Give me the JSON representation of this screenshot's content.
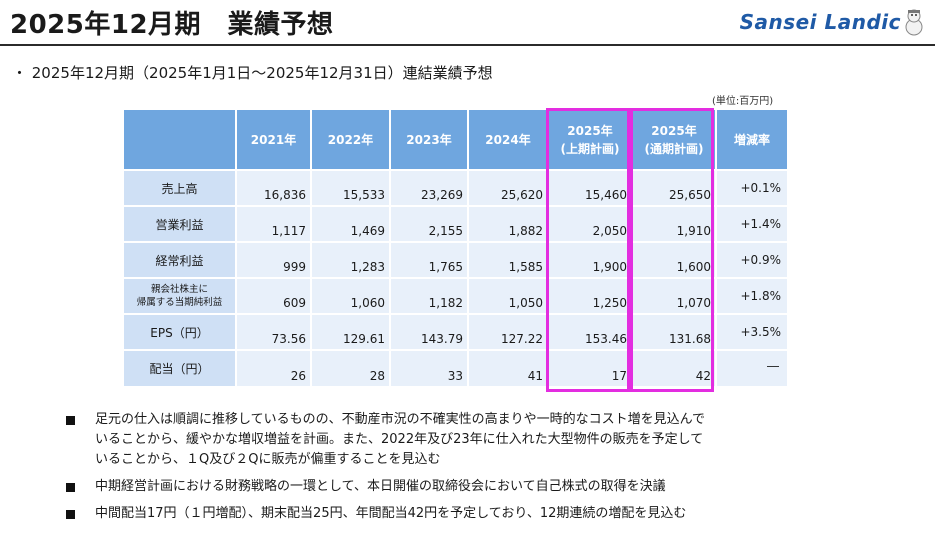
{
  "header": {
    "title": "2025年12月期　業績予想",
    "logo_text": "Sansei Landic"
  },
  "subtitle": "・ 2025年12月期（2025年1月1日～2025年12月31日）連結業績予想",
  "unit_note": "(単位:百万円)",
  "table": {
    "columns": [
      "2021年",
      "2022年",
      "2023年",
      "2024年",
      "2025年\n(上期計画)",
      "2025年\n(通期計画)",
      "増減率"
    ],
    "rows": [
      {
        "label": "売上高",
        "values": [
          "16,836",
          "15,533",
          "23,269",
          "25,620",
          "15,460",
          "25,650"
        ],
        "change": "+0.1%"
      },
      {
        "label": "営業利益",
        "values": [
          "1,117",
          "1,469",
          "2,155",
          "1,882",
          "2,050",
          "1,910"
        ],
        "change": "+1.4%"
      },
      {
        "label": "経常利益",
        "values": [
          "999",
          "1,283",
          "1,765",
          "1,585",
          "1,900",
          "1,600"
        ],
        "change": "+0.9%"
      },
      {
        "label": "親会社株主に\n帰属する当期純利益",
        "values": [
          "609",
          "1,060",
          "1,182",
          "1,050",
          "1,250",
          "1,070"
        ],
        "change": "+1.8%"
      },
      {
        "label": "EPS（円）",
        "values": [
          "73.56",
          "129.61",
          "143.79",
          "127.22",
          "153.46",
          "131.68"
        ],
        "change": "+3.5%"
      },
      {
        "label": "配当（円）",
        "values": [
          "26",
          "28",
          "33",
          "41",
          "17",
          "42"
        ],
        "change": "―"
      }
    ]
  },
  "highlight_color": "#e32de0",
  "bullets": [
    "足元の仕入は順調に推移しているものの、不動産市況の不確実性の高まりや一時的なコスト増を見込んで\nいることから、緩やかな増収増益を計画。また、2022年及び23年に仕入れた大型物件の販売を予定して\nいることから、１Q及び２Qに販売が偏重することを見込む",
    "中期経営計画における財務戦略の一環として、本日開催の取締役会において自己株式の取得を決議",
    "中間配当17円（１円増配）、期末配当25円、年間配当42円を予定しており、12期連続の増配を見込む"
  ]
}
